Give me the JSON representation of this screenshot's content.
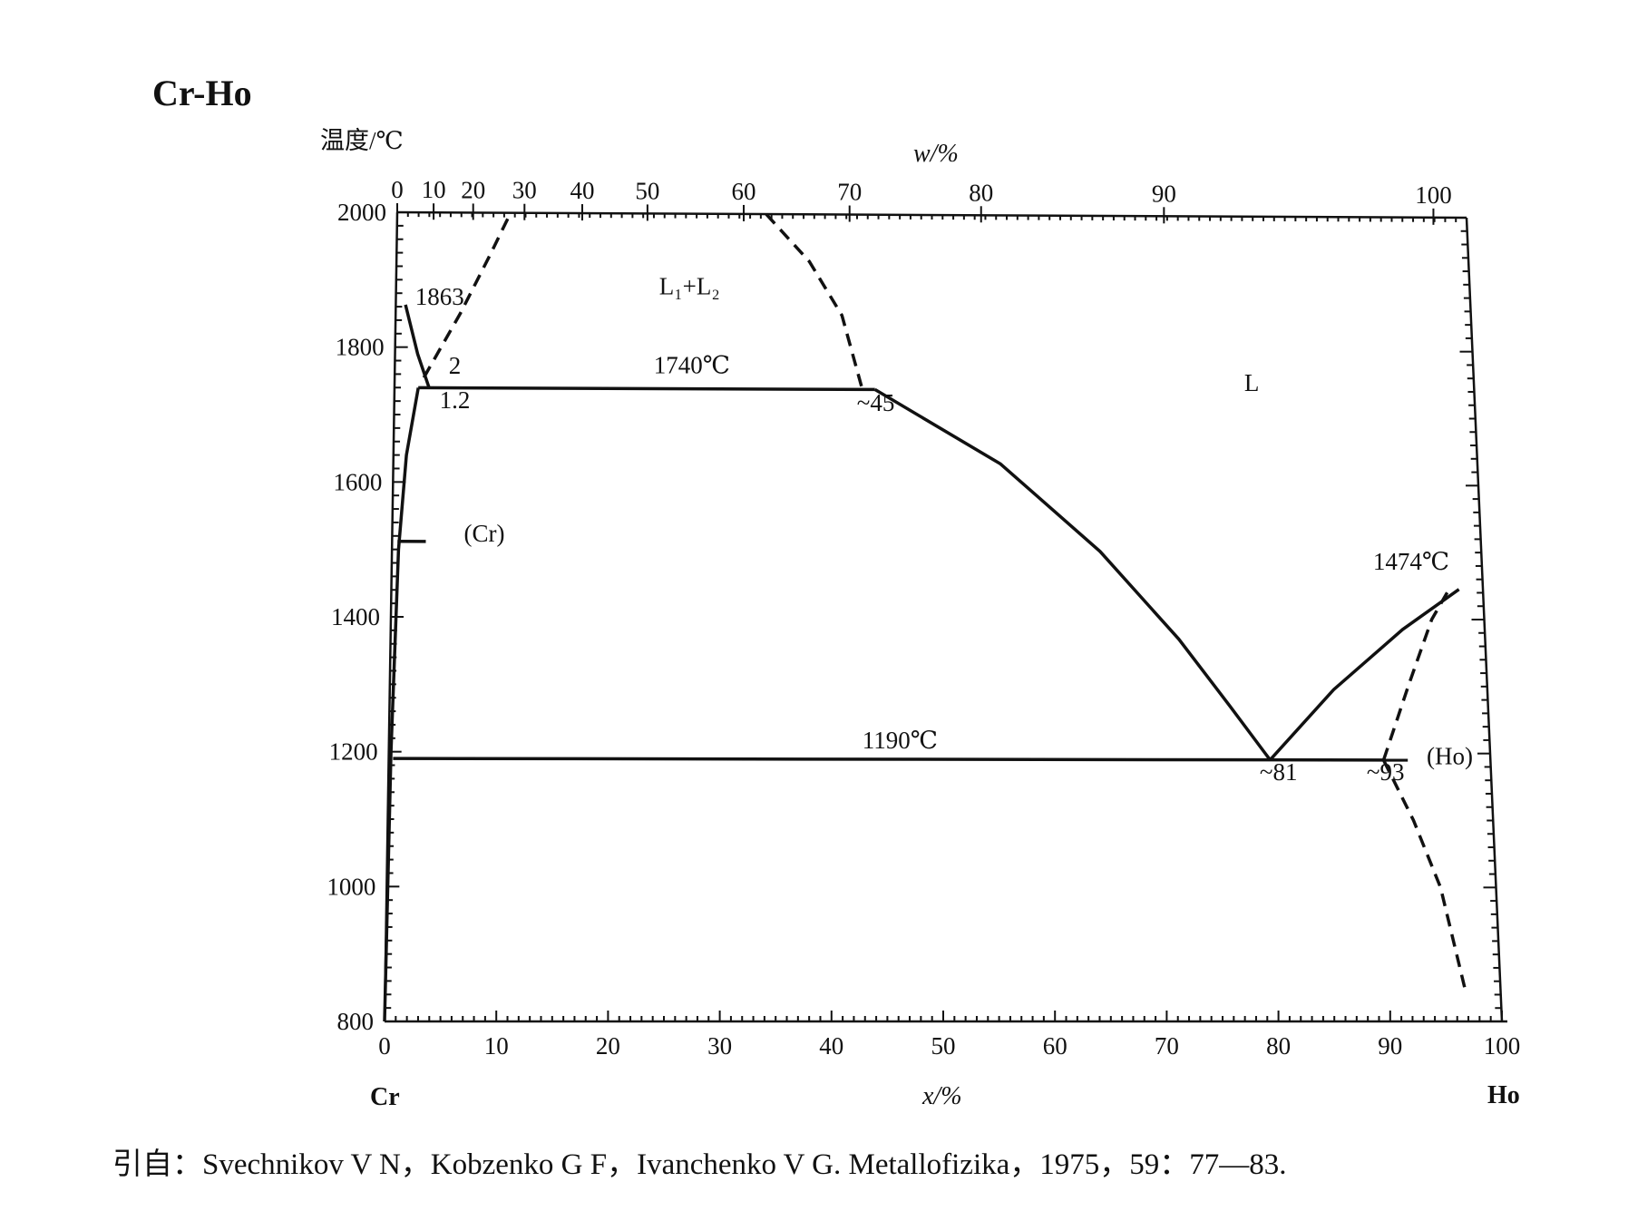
{
  "chart_data": {
    "type": "phase-diagram",
    "title": "Cr-Ho",
    "ylabel": "温度/℃",
    "xlabel": "x/%",
    "top_xlabel": "w/%",
    "element_left": "Cr",
    "element_right": "Ho",
    "xlim": [
      0,
      100
    ],
    "ylim": [
      800,
      2000
    ],
    "y_ticks": [
      "2000",
      "1800",
      "1600",
      "1400",
      "1200",
      "1000",
      "800"
    ],
    "x_ticks": [
      "0",
      "10",
      "20",
      "30",
      "40",
      "50",
      "60",
      "70",
      "80",
      "90",
      "100"
    ],
    "top_ticks": [
      "0",
      "10",
      "20",
      "30",
      "40",
      "50",
      "60",
      "70",
      "80",
      "90",
      "100"
    ],
    "top_tick_positions_x": [
      0,
      3.4,
      7.1,
      11.9,
      17.3,
      23.4,
      32.4,
      42.3,
      54.6,
      71.7,
      96.9
    ],
    "annotations": [
      {
        "text": "1863",
        "x": 1.8,
        "y": 1863
      },
      {
        "text": "L₁+L₂",
        "x": 24.5,
        "y": 1880
      },
      {
        "text": "2",
        "x": 5.0,
        "y": 1761
      },
      {
        "text": "1740℃",
        "x": 24.0,
        "y": 1763
      },
      {
        "text": "1.2",
        "x": 4.2,
        "y": 1710
      },
      {
        "text": "~45",
        "x": 42.8,
        "y": 1708
      },
      {
        "text": "L",
        "x": 78.7,
        "y": 1740
      },
      {
        "text": "(Cr)",
        "x": 6.6,
        "y": 1512
      },
      {
        "text": "1474℃",
        "x": 90.0,
        "y": 1474
      },
      {
        "text": "1190℃",
        "x": 43.0,
        "y": 1206
      },
      {
        "text": "~81",
        "x": 79.0,
        "y": 1160
      },
      {
        "text": "~93",
        "x": 88.7,
        "y": 1160
      },
      {
        "text": "(Ho)",
        "x": 94.2,
        "y": 1184
      }
    ],
    "lines_solid": [
      {
        "name": "liquidus-cr",
        "x": [
          0.9,
          2.1,
          3.2
        ],
        "y": [
          1863,
          1790,
          1740
        ]
      },
      {
        "name": "solidus-cr",
        "x": [
          0,
          0.2,
          0.6,
          1.2,
          2.2
        ],
        "y": [
          800,
          1200,
          1500,
          1640,
          1740
        ]
      },
      {
        "name": "monotectic-1740",
        "x": [
          2.2,
          44.5
        ],
        "y": [
          1740,
          1740
        ]
      },
      {
        "name": "liquidus-ho-side",
        "x": [
          44.5,
          56,
          65,
          72,
          76.5,
          80
        ],
        "y": [
          1740,
          1630,
          1500,
          1370,
          1270,
          1190
        ]
      },
      {
        "name": "liquidus-ho",
        "x": [
          80,
          86,
          92.5,
          97.8
        ],
        "y": [
          1190,
          1295,
          1385,
          1445
        ]
      },
      {
        "name": "eutectic-1190",
        "x": [
          0.4,
          92.5
        ],
        "y": [
          1190,
          1190
        ]
      },
      {
        "name": "cr-solvus-stub",
        "x": [
          0.5,
          3.1
        ],
        "y": [
          1512,
          1512
        ]
      }
    ],
    "lines_dashed": [
      {
        "name": "miscibility-gap-left",
        "x": [
          2.7,
          6.0,
          8.8,
          10.6
        ],
        "y": [
          1755,
          1850,
          1940,
          2000
        ]
      },
      {
        "name": "miscibility-gap-right",
        "x": [
          34.5,
          38.5,
          41.5,
          43.3
        ],
        "y": [
          2000,
          1930,
          1850,
          1742
        ]
      },
      {
        "name": "ho-solidus",
        "x": [
          90.3,
          92.8,
          95.2,
          96.9
        ],
        "y": [
          1190,
          1300,
          1400,
          1445
        ]
      },
      {
        "name": "ho-solvus",
        "x": [
          90.3,
          92.8,
          95.0,
          96.8
        ],
        "y": [
          1190,
          1100,
          1000,
          850
        ]
      }
    ]
  },
  "citation": "引自：Svechnikov V N，Kobzenko G F，Ivanchenko V G. Metallofizika，1975，59：77—83."
}
